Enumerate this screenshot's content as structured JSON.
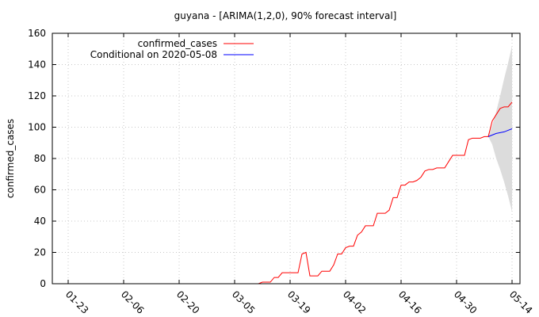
{
  "chart_data": {
    "type": "line",
    "title": "guyana -  [ARIMA(1,2,0), 90% forecast interval]",
    "xlabel": "",
    "ylabel": "confirmed_cases",
    "x_tick_labels": [
      "01-23",
      "02-06",
      "02-20",
      "03-05",
      "03-19",
      "04-02",
      "04-16",
      "04-30",
      "05-14"
    ],
    "x_ticks_day": [
      0,
      14,
      28,
      42,
      56,
      70,
      84,
      98,
      112
    ],
    "xlim_day": [
      -4,
      114
    ],
    "y_ticks": [
      0,
      20,
      40,
      60,
      80,
      100,
      120,
      140,
      160
    ],
    "ylim": [
      0,
      160
    ],
    "grid": true,
    "legend_position": "top-left",
    "series": [
      {
        "name": "confirmed_cases",
        "color": "#ff0000",
        "points": [
          [
            48,
            0
          ],
          [
            49,
            1
          ],
          [
            50,
            1
          ],
          [
            51,
            1
          ],
          [
            52,
            4
          ],
          [
            53,
            4
          ],
          [
            54,
            7
          ],
          [
            55,
            7
          ],
          [
            56,
            7
          ],
          [
            57,
            7
          ],
          [
            58,
            7
          ],
          [
            59,
            19
          ],
          [
            60,
            20
          ],
          [
            61,
            5
          ],
          [
            62,
            5
          ],
          [
            63,
            5
          ],
          [
            64,
            8
          ],
          [
            65,
            8
          ],
          [
            66,
            8
          ],
          [
            67,
            12
          ],
          [
            68,
            19
          ],
          [
            69,
            19
          ],
          [
            70,
            23
          ],
          [
            71,
            24
          ],
          [
            72,
            24
          ],
          [
            73,
            31
          ],
          [
            74,
            33
          ],
          [
            75,
            37
          ],
          [
            76,
            37
          ],
          [
            77,
            37
          ],
          [
            78,
            45
          ],
          [
            79,
            45
          ],
          [
            80,
            45
          ],
          [
            81,
            47
          ],
          [
            82,
            55
          ],
          [
            83,
            55
          ],
          [
            84,
            63
          ],
          [
            85,
            63
          ],
          [
            86,
            65
          ],
          [
            87,
            65
          ],
          [
            88,
            66
          ],
          [
            89,
            68
          ],
          [
            90,
            72
          ],
          [
            91,
            73
          ],
          [
            92,
            73
          ],
          [
            93,
            74
          ],
          [
            94,
            74
          ],
          [
            95,
            74
          ],
          [
            96,
            78
          ],
          [
            97,
            82
          ],
          [
            98,
            82
          ],
          [
            99,
            82
          ],
          [
            100,
            82
          ],
          [
            101,
            92
          ],
          [
            102,
            93
          ],
          [
            103,
            93
          ],
          [
            104,
            93
          ],
          [
            105,
            94
          ],
          [
            106,
            94
          ],
          [
            107,
            104
          ],
          [
            108,
            108
          ],
          [
            109,
            112
          ],
          [
            110,
            113
          ],
          [
            111,
            113
          ],
          [
            112,
            116
          ]
        ]
      },
      {
        "name": "Conditional on 2020-05-08",
        "color": "#0000ff",
        "points": [
          [
            106,
            94
          ],
          [
            107,
            95
          ],
          [
            108,
            96
          ],
          [
            109,
            96.5
          ],
          [
            110,
            97
          ],
          [
            111,
            98
          ],
          [
            112,
            99
          ]
        ]
      }
    ],
    "forecast_interval": {
      "color": "#dcdcdc",
      "x": [
        106,
        107,
        108,
        109,
        110,
        111,
        112
      ],
      "lower": [
        94,
        89,
        80,
        73,
        65,
        56,
        46
      ],
      "upper": [
        94,
        101,
        110,
        120,
        131,
        141,
        152
      ]
    }
  }
}
